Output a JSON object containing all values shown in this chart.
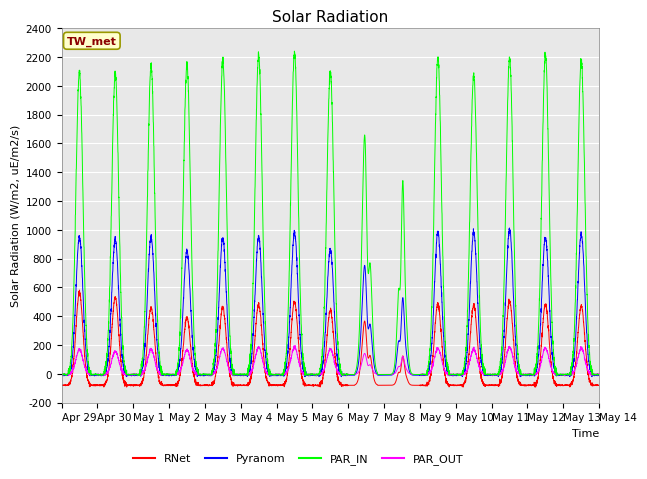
{
  "title": "Solar Radiation",
  "ylabel": "Solar Radiation (W/m2, uE/m2/s)",
  "xlabel": "Time",
  "station_label": "TW_met",
  "ylim": [
    -200,
    2400
  ],
  "yticks": [
    -200,
    0,
    200,
    400,
    600,
    800,
    1000,
    1200,
    1400,
    1600,
    1800,
    2000,
    2200,
    2400
  ],
  "x_tick_labels": [
    "Apr 29",
    "Apr 30",
    "May 1",
    "May 2",
    "May 3",
    "May 4",
    "May 5",
    "May 6",
    "May 7",
    "May 8",
    "May 9",
    "May 10",
    "May 11",
    "May 12",
    "May 13",
    "May 14"
  ],
  "num_days": 15,
  "colors": {
    "RNet": "#ff0000",
    "Pyranom": "#0000ff",
    "PAR_IN": "#00ff00",
    "PAR_OUT": "#ff00ff"
  },
  "plot_bg_color": "#e8e8e8",
  "title_fontsize": 11,
  "label_fontsize": 8,
  "tick_fontsize": 7.5
}
